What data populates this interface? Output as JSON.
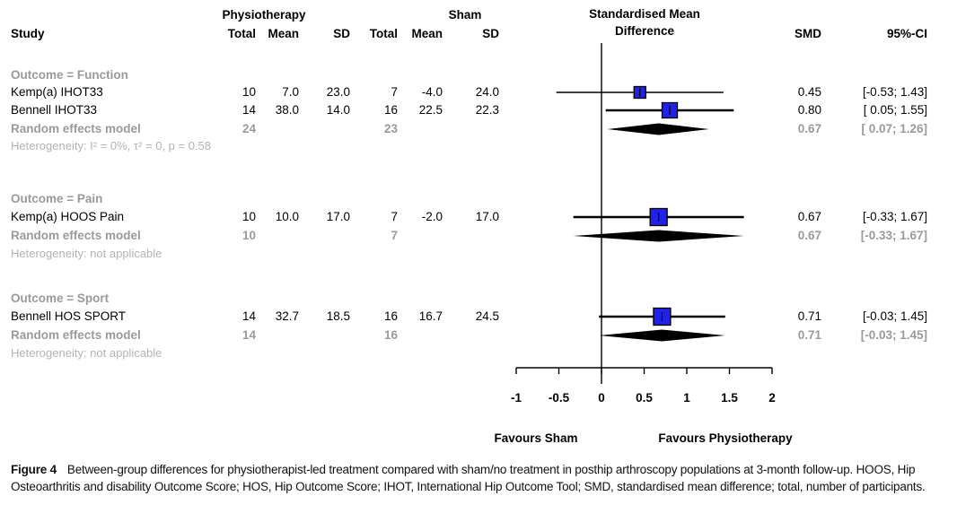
{
  "header": {
    "study_col": "Study",
    "group1": "Physiotherapy",
    "group2": "Sham",
    "subcols": [
      "Total",
      "Mean",
      "SD",
      "Total",
      "Mean",
      "SD"
    ],
    "effect_title_line1": "Standardised Mean",
    "effect_title_line2": "Difference",
    "smd_col": "SMD",
    "ci_col": "95%-CI"
  },
  "axis": {
    "range": [
      -1,
      2
    ],
    "tick_values": [
      -1,
      -0.5,
      0,
      0.5,
      1,
      1.5,
      2
    ],
    "tick_labels": [
      "-1",
      "-0.5",
      "0",
      "0.5",
      "1",
      "1.5",
      "2"
    ],
    "favours_left": "Favours Sham",
    "favours_right": "Favours Physiotherapy"
  },
  "colors": {
    "marker_fill": "#2222e6",
    "marker_stroke": "#000000",
    "diamond_fill": "#000000",
    "line": "#000000",
    "grey_bold": "#9a9a9a",
    "grey_light": "#b3b3b3"
  },
  "chart_data": {
    "type": "forest",
    "x_axis": {
      "min": -1,
      "max": 2,
      "ticks": [
        -1,
        -0.5,
        0,
        0.5,
        1,
        1.5,
        2
      ],
      "zero_line": 0
    },
    "groups": [
      {
        "outcome": "Outcome = Function",
        "studies": [
          {
            "name": "Kemp(a) IHOT33",
            "total1": "10",
            "mean1": "7.0",
            "sd1": "23.0",
            "total2": "7",
            "mean2": "-4.0",
            "sd2": "24.0",
            "smd": 0.45,
            "ci_low": -0.53,
            "ci_high": 1.43,
            "smd_text": "0.45",
            "ci_text": "[-0.53; 1.43]",
            "marker_size": 13
          },
          {
            "name": "Bennell IHOT33",
            "total1": "14",
            "mean1": "38.0",
            "sd1": "14.0",
            "total2": "16",
            "mean2": "22.5",
            "sd2": "22.3",
            "smd": 0.8,
            "ci_low": 0.05,
            "ci_high": 1.55,
            "smd_text": "0.80",
            "ci_text": "[ 0.05; 1.55]",
            "marker_size": 17
          }
        ],
        "pooled": {
          "name": "Random effects model",
          "total1": "24",
          "total2": "23",
          "smd": 0.67,
          "ci_low": 0.07,
          "ci_high": 1.26,
          "smd_text": "0.67",
          "ci_text": "[ 0.07; 1.26]"
        },
        "heterogeneity": "Heterogeneity: I² = 0%, τ² = 0, p = 0.58"
      },
      {
        "outcome": "Outcome = Pain",
        "studies": [
          {
            "name": "Kemp(a) HOOS Pain",
            "total1": "10",
            "mean1": "10.0",
            "sd1": "17.0",
            "total2": "7",
            "mean2": "-2.0",
            "sd2": "17.0",
            "smd": 0.67,
            "ci_low": -0.33,
            "ci_high": 1.67,
            "smd_text": "0.67",
            "ci_text": "[-0.33; 1.67]",
            "marker_size": 19
          }
        ],
        "pooled": {
          "name": "Random effects model",
          "total1": "10",
          "total2": "7",
          "smd": 0.67,
          "ci_low": -0.33,
          "ci_high": 1.67,
          "smd_text": "0.67",
          "ci_text": "[-0.33; 1.67]"
        },
        "heterogeneity": "Heterogeneity: not applicable"
      },
      {
        "outcome": "Outcome = Sport",
        "studies": [
          {
            "name": "Bennell HOS SPORT",
            "total1": "14",
            "mean1": "32.7",
            "sd1": "18.5",
            "total2": "16",
            "mean2": "16.7",
            "sd2": "24.5",
            "smd": 0.71,
            "ci_low": -0.03,
            "ci_high": 1.45,
            "smd_text": "0.71",
            "ci_text": "[-0.03; 1.45]",
            "marker_size": 19
          }
        ],
        "pooled": {
          "name": "Random effects model",
          "total1": "14",
          "total2": "16",
          "smd": 0.71,
          "ci_low": -0.03,
          "ci_high": 1.45,
          "smd_text": "0.71",
          "ci_text": "[-0.03; 1.45]"
        },
        "heterogeneity": "Heterogeneity: not applicable"
      }
    ]
  },
  "caption": {
    "label": "Figure 4",
    "text": "Between-group differences for physiotherapist-led treatment compared with sham/no treatment in posthip arthroscopy populations at 3-month follow-up. HOOS, Hip Osteoarthritis and disability Outcome Score; HOS, Hip Outcome Score; IHOT, International Hip Outcome Tool; SMD, standardised mean difference; total, number of participants."
  }
}
